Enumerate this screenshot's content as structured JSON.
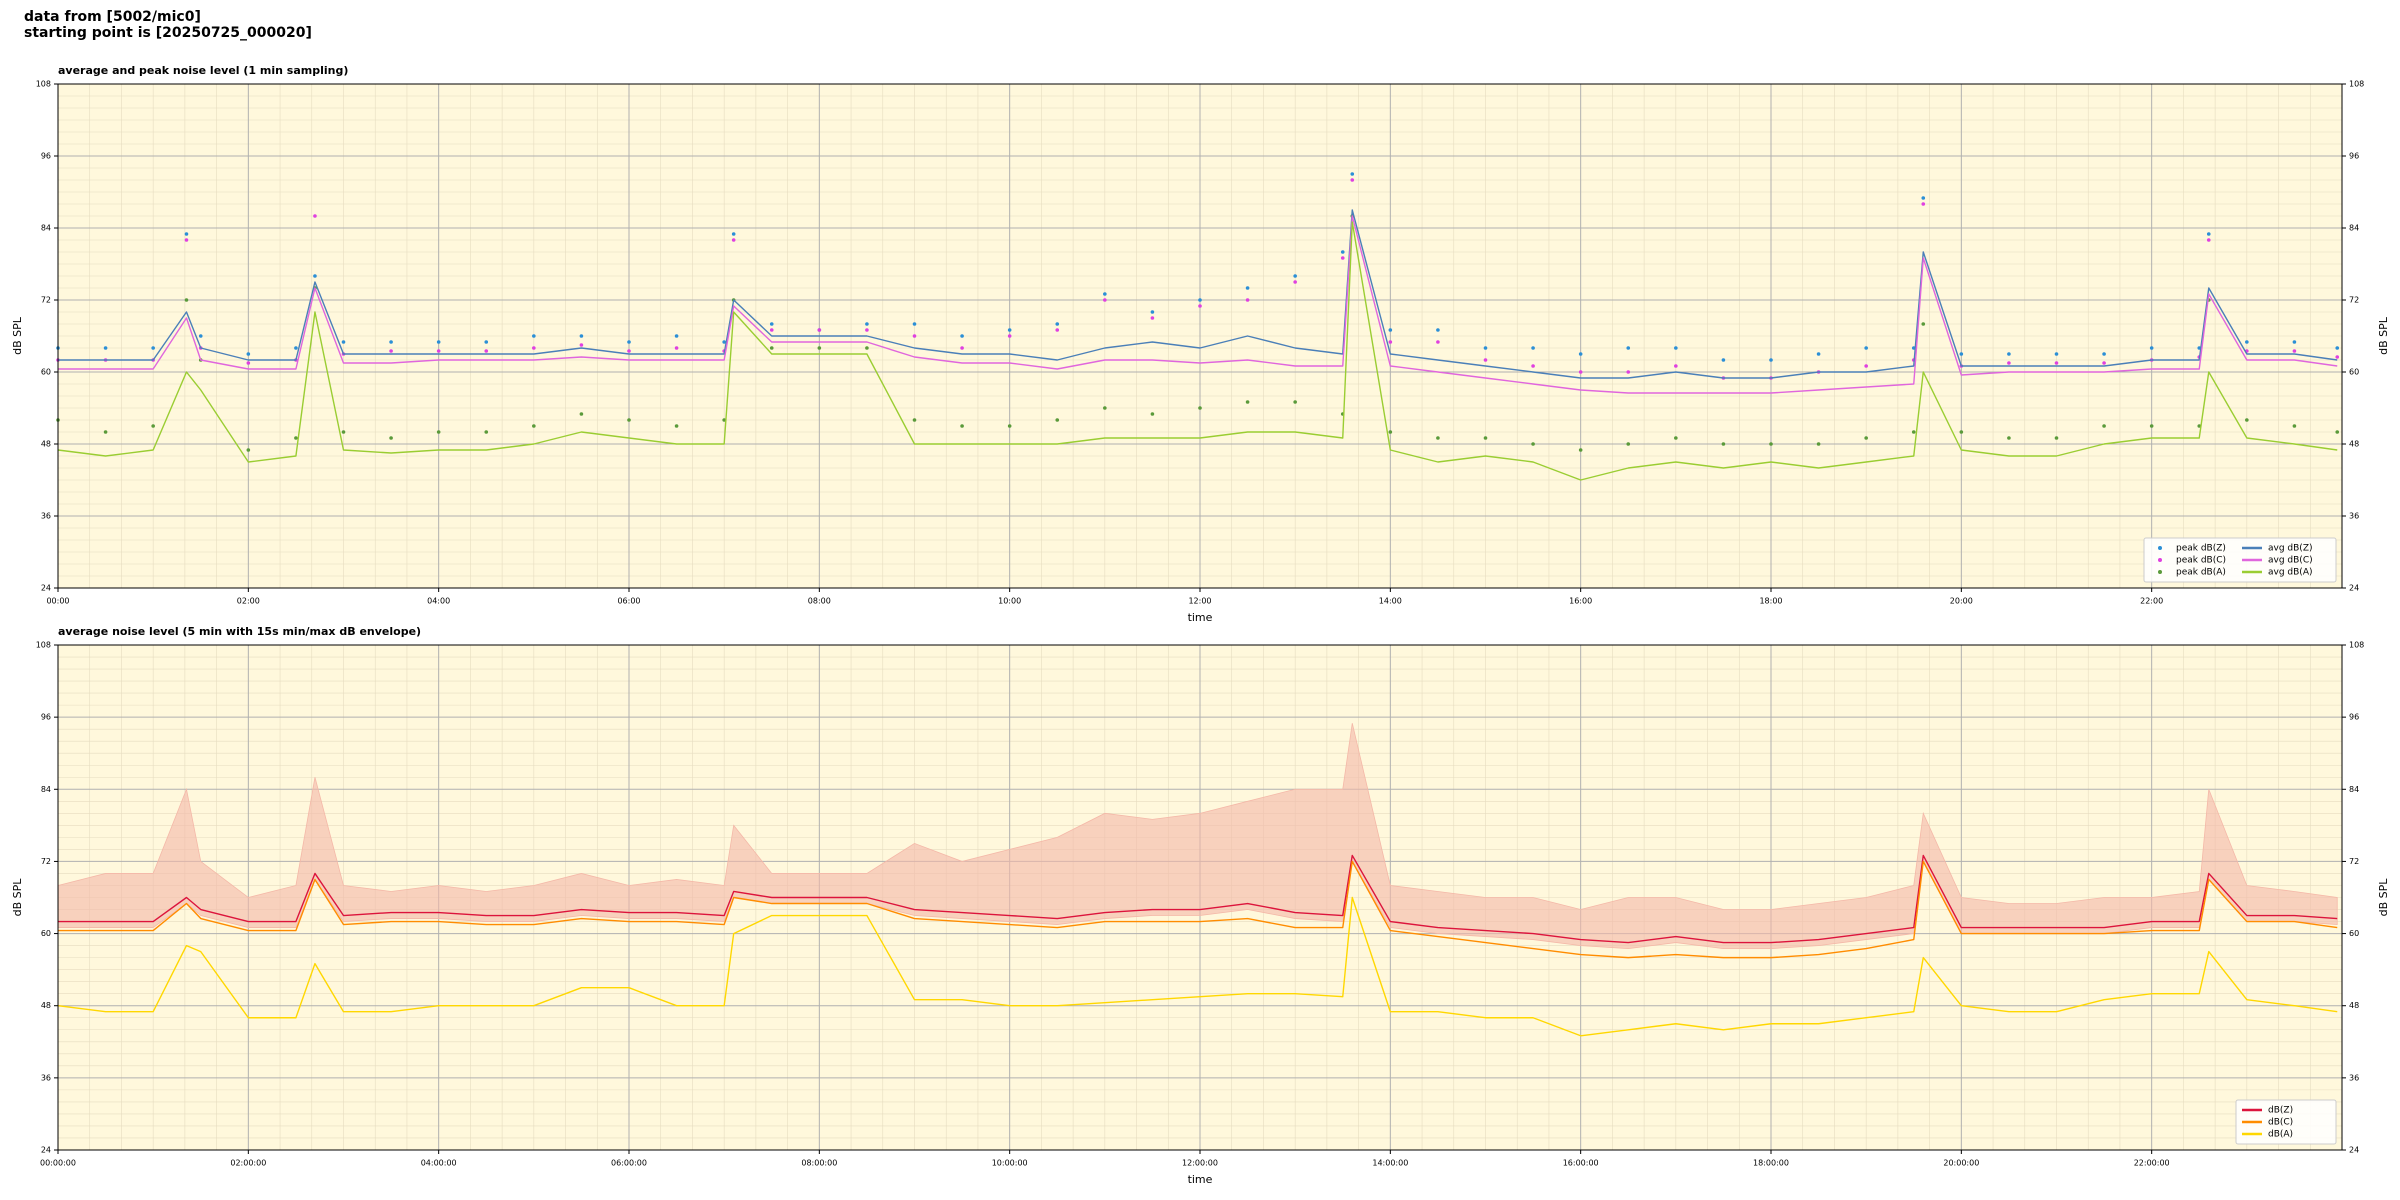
{
  "header": {
    "lines": [
      "data from [5002/mic0]",
      "starting point is [20250725_000020]"
    ]
  },
  "chart_data": [
    {
      "type": "line",
      "title": "average and peak noise level (1 min sampling)",
      "x_label": "time",
      "y_label": "dB SPL",
      "xlim": [
        0,
        24
      ],
      "ylim": [
        24,
        108
      ],
      "yticks": [
        24,
        36,
        48,
        60,
        72,
        84,
        96,
        108
      ],
      "xticks": [
        {
          "value": 0,
          "label": "00:00"
        },
        {
          "value": 2,
          "label": "02:00"
        },
        {
          "value": 4,
          "label": "04:00"
        },
        {
          "value": 6,
          "label": "06:00"
        },
        {
          "value": 8,
          "label": "08:00"
        },
        {
          "value": 10,
          "label": "10:00"
        },
        {
          "value": 12,
          "label": "12:00"
        },
        {
          "value": 14,
          "label": "14:00"
        },
        {
          "value": 16,
          "label": "16:00"
        },
        {
          "value": 18,
          "label": "18:00"
        },
        {
          "value": 20,
          "label": "20:00"
        },
        {
          "value": 22,
          "label": "22:00"
        }
      ],
      "grid": true,
      "legend": "lower right",
      "background": "#fff8dc",
      "x": [
        0,
        0.5,
        1,
        1.35,
        1.5,
        2,
        2.5,
        2.7,
        3,
        3.5,
        4,
        4.5,
        5,
        5.5,
        6,
        6.5,
        7,
        7.1,
        7.5,
        8,
        8.5,
        9,
        9.5,
        10,
        10.5,
        11,
        11.5,
        12,
        12.5,
        13,
        13.5,
        13.6,
        14,
        14.5,
        15,
        15.5,
        16,
        16.5,
        17,
        17.5,
        18,
        18.5,
        19,
        19.5,
        19.6,
        20,
        20.5,
        21,
        21.5,
        22,
        22.5,
        22.6,
        23,
        23.5,
        23.95
      ],
      "series": [
        {
          "name": "peak dB(Z)",
          "type": "scatter",
          "color": "#2b8fd6",
          "values": [
            64,
            64,
            64,
            83,
            66,
            63,
            64,
            76,
            65,
            65,
            65,
            65,
            66,
            66,
            65,
            66,
            65,
            83,
            68,
            67,
            68,
            68,
            66,
            67,
            68,
            73,
            70,
            72,
            74,
            76,
            80,
            93,
            67,
            67,
            64,
            64,
            63,
            64,
            64,
            62,
            62,
            63,
            64,
            64,
            89,
            63,
            63,
            63,
            63,
            64,
            64,
            83,
            65,
            65,
            64
          ]
        },
        {
          "name": "peak dB(C)",
          "type": "scatter",
          "color": "#e040e0",
          "values": [
            62,
            62,
            62,
            82,
            64,
            61.5,
            62,
            86,
            63,
            63.5,
            63.5,
            63.5,
            64,
            64.5,
            63.5,
            64,
            63.5,
            82,
            67,
            67,
            67,
            66,
            64,
            66,
            67,
            72,
            69,
            71,
            72,
            75,
            79,
            92,
            65,
            65,
            62,
            61,
            60,
            60,
            61,
            59,
            59,
            60,
            61,
            62,
            88,
            61,
            61.5,
            61.5,
            61.5,
            62,
            62.5,
            82,
            63.5,
            63.5,
            62.5
          ]
        },
        {
          "name": "peak dB(A)",
          "type": "scatter",
          "color": "#5a9a3a",
          "values": [
            52,
            50,
            51,
            72,
            62,
            47,
            49,
            74,
            50,
            49,
            50,
            50,
            51,
            53,
            52,
            51,
            52,
            72,
            64,
            64,
            64,
            52,
            51,
            51,
            52,
            54,
            53,
            54,
            55,
            55,
            53,
            86,
            50,
            49,
            49,
            48,
            47,
            48,
            49,
            48,
            48,
            48,
            49,
            50,
            68,
            50,
            49,
            49,
            51,
            51,
            51,
            72,
            52,
            51,
            50
          ]
        },
        {
          "name": "avg dB(Z)",
          "type": "line",
          "color": "#4a7fb8",
          "values": [
            62,
            62,
            62,
            70,
            64,
            62,
            62,
            75,
            63,
            63,
            63,
            63,
            63,
            64,
            63,
            63,
            63,
            72,
            66,
            66,
            66,
            64,
            63,
            63,
            62,
            64,
            65,
            64,
            66,
            64,
            63,
            87,
            63,
            62,
            61,
            60,
            59,
            59,
            60,
            59,
            59,
            60,
            60,
            61,
            80,
            61,
            61,
            61,
            61,
            62,
            62,
            74,
            63,
            63,
            62
          ]
        },
        {
          "name": "avg dB(C)",
          "type": "line",
          "color": "#e066dd",
          "values": [
            60.5,
            60.5,
            60.5,
            69,
            62,
            60.5,
            60.5,
            74,
            61.5,
            61.5,
            62,
            62,
            62,
            62.5,
            62,
            62,
            62,
            71,
            65,
            65,
            65,
            62.5,
            61.5,
            61.5,
            60.5,
            62,
            62,
            61.5,
            62,
            61,
            61,
            86,
            61,
            60,
            59,
            58,
            57,
            56.5,
            56.5,
            56.5,
            56.5,
            57,
            57.5,
            58,
            79,
            59.5,
            60,
            60,
            60,
            60.5,
            60.5,
            73,
            62,
            62,
            61
          ]
        },
        {
          "name": "avg dB(A)",
          "type": "line",
          "color": "#9acd32",
          "values": [
            47,
            46,
            47,
            60,
            57,
            45,
            46,
            70,
            47,
            46.5,
            47,
            47,
            48,
            50,
            49,
            48,
            48,
            70,
            63,
            63,
            63,
            48,
            48,
            48,
            48,
            49,
            49,
            49,
            50,
            50,
            49,
            85,
            47,
            45,
            46,
            45,
            42,
            44,
            45,
            44,
            45,
            44,
            45,
            46,
            60,
            47,
            46,
            46,
            48,
            49,
            49,
            60,
            49,
            48,
            47
          ]
        }
      ]
    },
    {
      "type": "line",
      "title": "average noise level (5 min with 15s min/max dB envelope)",
      "x_label": "time",
      "y_label": "dB SPL",
      "xlim": [
        0,
        24
      ],
      "ylim": [
        24,
        108
      ],
      "yticks": [
        24,
        36,
        48,
        60,
        72,
        84,
        96,
        108
      ],
      "xticks": [
        {
          "value": 0,
          "label": "00:00:00"
        },
        {
          "value": 2,
          "label": "02:00:00"
        },
        {
          "value": 4,
          "label": "04:00:00"
        },
        {
          "value": 6,
          "label": "06:00:00"
        },
        {
          "value": 8,
          "label": "08:00:00"
        },
        {
          "value": 10,
          "label": "10:00:00"
        },
        {
          "value": 12,
          "label": "12:00:00"
        },
        {
          "value": 14,
          "label": "14:00:00"
        },
        {
          "value": 16,
          "label": "16:00:00"
        },
        {
          "value": 18,
          "label": "18:00:00"
        },
        {
          "value": 20,
          "label": "20:00:00"
        },
        {
          "value": 22,
          "label": "22:00:00"
        }
      ],
      "grid": true,
      "legend": "lower right",
      "background": "#fff8dc",
      "x": [
        0,
        0.5,
        1,
        1.35,
        1.5,
        2,
        2.5,
        2.7,
        3,
        3.5,
        4,
        4.5,
        5,
        5.5,
        6,
        6.5,
        7,
        7.1,
        7.5,
        8,
        8.5,
        9,
        9.5,
        10,
        10.5,
        11,
        11.5,
        12,
        12.5,
        13,
        13.5,
        13.6,
        14,
        14.5,
        15,
        15.5,
        16,
        16.5,
        17,
        17.5,
        18,
        18.5,
        19,
        19.5,
        19.6,
        20,
        20.5,
        21,
        21.5,
        22,
        22.5,
        22.6,
        23,
        23.5,
        23.95
      ],
      "envelope": {
        "color": "#f4b8a8",
        "upper": [
          68,
          70,
          70,
          84,
          72,
          66,
          68,
          86,
          68,
          67,
          68,
          67,
          68,
          70,
          68,
          69,
          68,
          78,
          70,
          70,
          70,
          75,
          72,
          74,
          76,
          80,
          79,
          80,
          82,
          84,
          84,
          95,
          68,
          67,
          66,
          66,
          64,
          66,
          66,
          64,
          64,
          65,
          66,
          68,
          80,
          66,
          65,
          65,
          66,
          66,
          67,
          84,
          68,
          67,
          66
        ],
        "lower": [
          61,
          61,
          61,
          65,
          63,
          61,
          61,
          69,
          62,
          62.5,
          62.5,
          62,
          62,
          63,
          62.5,
          62.5,
          62,
          66,
          65,
          65,
          65,
          63,
          62.5,
          62,
          61.5,
          62.5,
          63,
          63,
          64,
          62.5,
          62,
          72,
          61,
          60,
          59.5,
          59,
          58,
          57.5,
          58.5,
          57.5,
          57.5,
          58,
          59,
          60,
          72,
          60,
          60,
          60,
          60,
          61,
          61,
          69,
          62,
          62,
          61.5
        ]
      },
      "series": [
        {
          "name": "dB(Z)",
          "type": "line",
          "color": "#dc143c",
          "values": [
            62,
            62,
            62,
            66,
            64,
            62,
            62,
            70,
            63,
            63.5,
            63.5,
            63,
            63,
            64,
            63.5,
            63.5,
            63,
            67,
            66,
            66,
            66,
            64,
            63.5,
            63,
            62.5,
            63.5,
            64,
            64,
            65,
            63.5,
            63,
            73,
            62,
            61,
            60.5,
            60,
            59,
            58.5,
            59.5,
            58.5,
            58.5,
            59,
            60,
            61,
            73,
            61,
            61,
            61,
            61,
            62,
            62,
            70,
            63,
            63,
            62.5
          ]
        },
        {
          "name": "dB(C)",
          "type": "line",
          "color": "#ff8c00",
          "values": [
            60.5,
            60.5,
            60.5,
            65,
            62.5,
            60.5,
            60.5,
            69,
            61.5,
            62,
            62,
            61.5,
            61.5,
            62.5,
            62,
            62,
            61.5,
            66,
            65,
            65,
            65,
            62.5,
            62,
            61.5,
            61,
            62,
            62,
            62,
            62.5,
            61,
            61,
            72,
            60.5,
            59.5,
            58.5,
            57.5,
            56.5,
            56,
            56.5,
            56,
            56,
            56.5,
            57.5,
            59,
            72,
            60,
            60,
            60,
            60,
            60.5,
            60.5,
            69,
            62,
            62,
            61
          ]
        },
        {
          "name": "dB(A)",
          "type": "line",
          "color": "#ffd700",
          "values": [
            48,
            47,
            47,
            58,
            57,
            46,
            46,
            55,
            47,
            47,
            48,
            48,
            48,
            51,
            51,
            48,
            48,
            60,
            63,
            63,
            63,
            49,
            49,
            48,
            48,
            48.5,
            49,
            49.5,
            50,
            50,
            49.5,
            66,
            47,
            47,
            46,
            46,
            43,
            44,
            45,
            44,
            45,
            45,
            46,
            47,
            56,
            48,
            47,
            47,
            49,
            50,
            50,
            57,
            49,
            48,
            47
          ]
        }
      ]
    }
  ]
}
